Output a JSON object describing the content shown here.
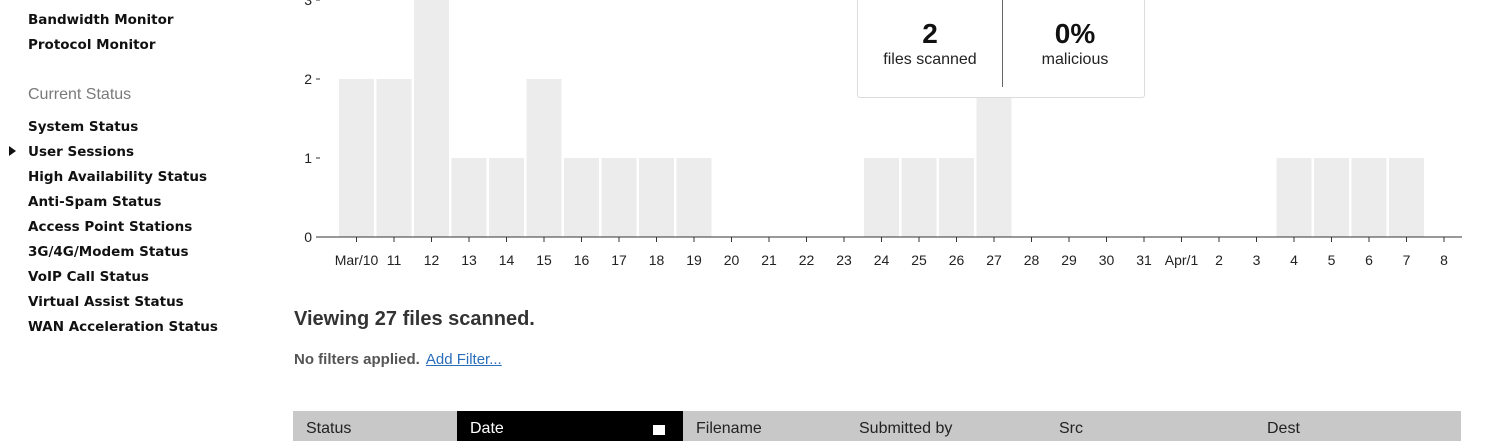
{
  "sidebar": {
    "top_items": [
      "Bandwidth Monitor",
      "Protocol Monitor"
    ],
    "section_title": "Current Status",
    "items": [
      "System Status",
      "User Sessions",
      "High Availability Status",
      "Anti-Spam Status",
      "Access Point Stations",
      "3G/4G/Modem Status",
      "VoIP Call Status",
      "Virtual Assist Status",
      "WAN Acceleration Status"
    ],
    "current_item_index": 1
  },
  "stats": {
    "files_scanned_value": "2",
    "files_scanned_label": "files scanned",
    "malicious_value": "0%",
    "malicious_label": "malicious"
  },
  "chart_data": {
    "type": "bar",
    "categories": [
      "Mar/10",
      "11",
      "12",
      "13",
      "14",
      "15",
      "16",
      "17",
      "18",
      "19",
      "20",
      "21",
      "22",
      "23",
      "24",
      "25",
      "26",
      "27",
      "28",
      "29",
      "30",
      "31",
      "Apr/1",
      "2",
      "3",
      "4",
      "5",
      "6",
      "7",
      "8"
    ],
    "values": [
      2,
      2,
      3,
      1,
      1,
      2,
      1,
      1,
      1,
      1,
      0,
      0,
      0,
      0,
      1,
      1,
      1,
      2,
      0,
      0,
      0,
      0,
      0,
      0,
      0,
      1,
      1,
      1,
      1,
      0
    ],
    "y_ticks": [
      0,
      1,
      2,
      3
    ],
    "ylim": [
      0,
      3
    ],
    "title": "",
    "xlabel": "",
    "ylabel": "",
    "bar_color": "#ececec"
  },
  "summary": {
    "viewing_text": "Viewing 27 files scanned.",
    "no_filters_text": "No filters applied.",
    "add_filter_link": "Add Filter..."
  },
  "table": {
    "columns": [
      "Status",
      "Date",
      "Filename",
      "Submitted by",
      "Src",
      "Dest"
    ],
    "sorted_column_index": 1
  }
}
